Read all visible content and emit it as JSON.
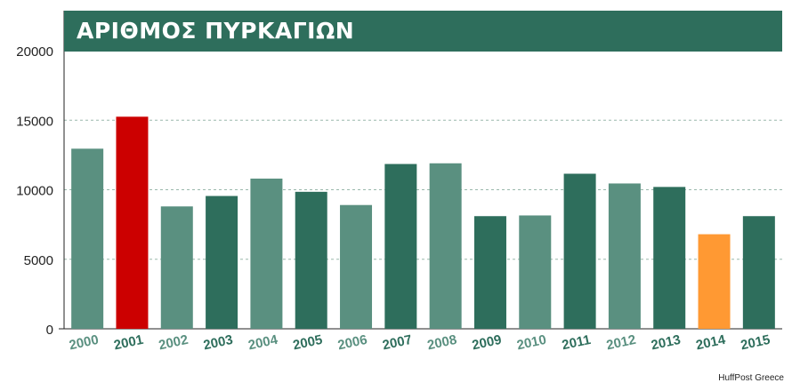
{
  "chart_data": {
    "type": "bar",
    "title": "ΑΡΙΘΜΟΣ ΠΥΡΚΑΓΙΩΝ",
    "categories": [
      "2000",
      "2001",
      "2002",
      "2003",
      "2004",
      "2005",
      "2006",
      "2007",
      "2008",
      "2009",
      "2010",
      "2011",
      "2012",
      "2013",
      "2014",
      "2015"
    ],
    "values": [
      12950,
      15250,
      8800,
      9550,
      10800,
      9850,
      8900,
      11850,
      11900,
      8100,
      8150,
      11150,
      10450,
      10200,
      6800,
      8100
    ],
    "ylim": [
      0,
      20000
    ],
    "yticks": [
      0,
      5000,
      10000,
      15000,
      20000
    ],
    "grid": "horizontal dashed",
    "legend": "none",
    "highlight": {
      "2001": "max",
      "2014": "min"
    }
  },
  "colors": {
    "title_band": "#2e6e5c",
    "bar_light": "#5a9080",
    "bar_dark": "#2e6e5c",
    "bar_max": "#cc0000",
    "bar_min": "#ff9933",
    "label_light": "#5a9080",
    "label_dark": "#2e6e5c",
    "grid": "#9ab8ac",
    "axis": "#222222"
  },
  "bar_tones": [
    "light",
    "max",
    "light",
    "dark",
    "light",
    "dark",
    "light",
    "dark",
    "light",
    "dark",
    "light",
    "dark",
    "light",
    "dark",
    "min",
    "dark"
  ],
  "source": "HuffPost Greece"
}
